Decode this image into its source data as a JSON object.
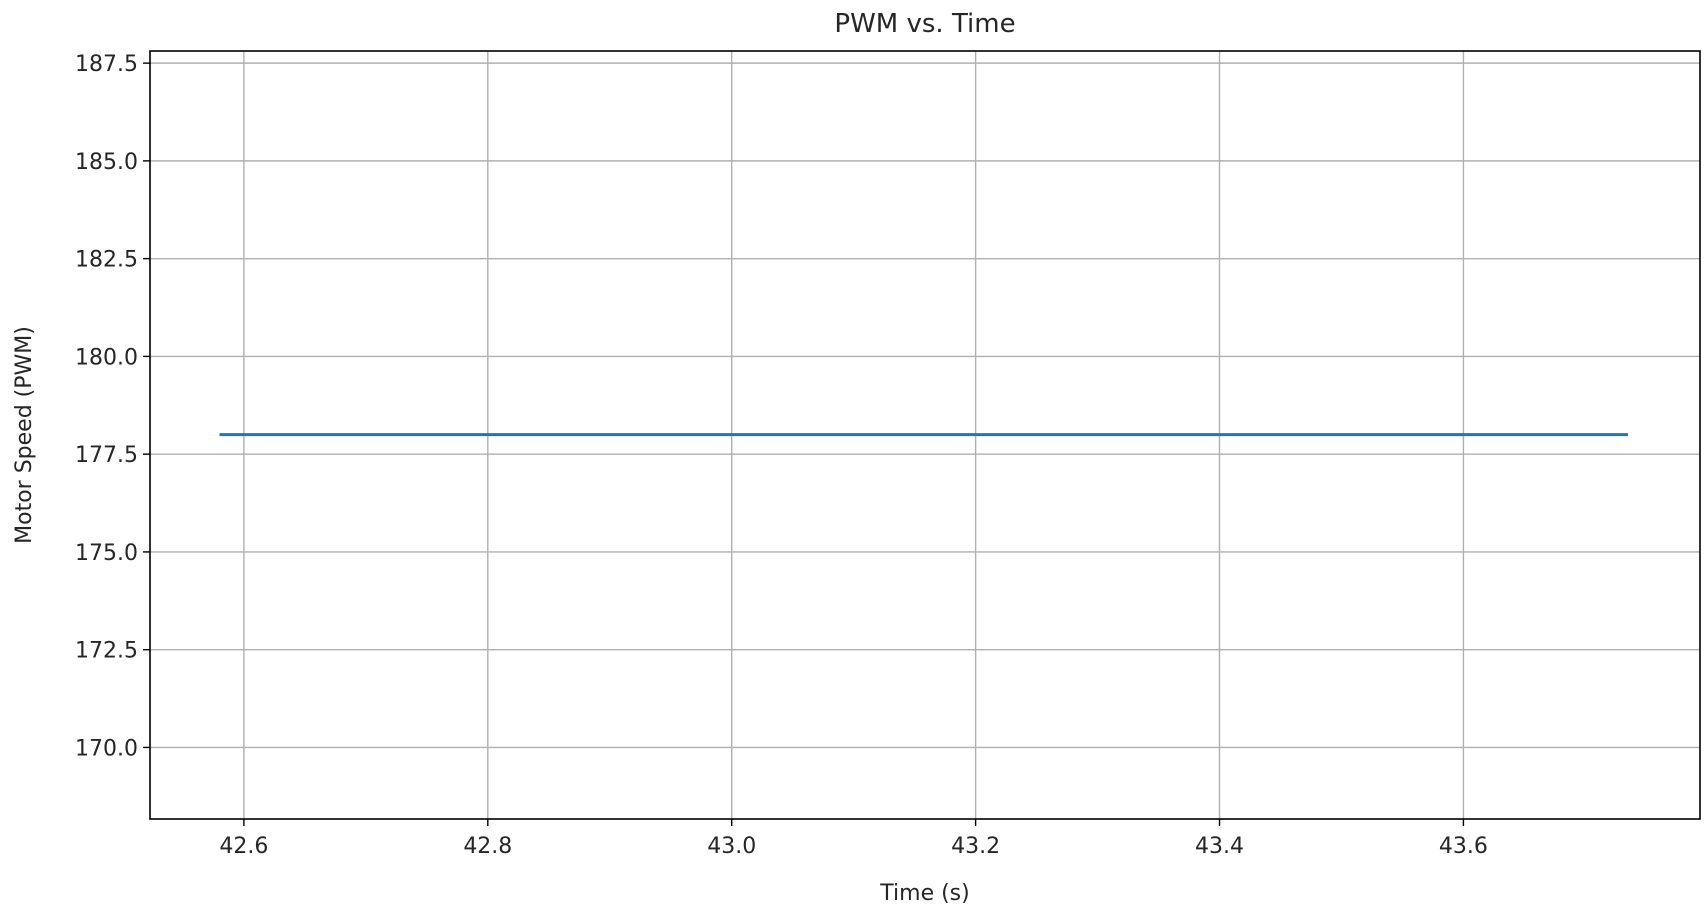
{
  "chart_data": {
    "type": "line",
    "title": "PWM vs. Time",
    "xlabel": "Time (s)",
    "ylabel": "Motor Speed (PWM)",
    "xlim": [
      42.523,
      43.794
    ],
    "ylim": [
      168.17,
      187.81
    ],
    "xticks": [
      42.6,
      42.8,
      43.0,
      43.2,
      43.4,
      43.6
    ],
    "xtick_labels": [
      "42.6",
      "42.8",
      "43.0",
      "43.2",
      "43.4",
      "43.6"
    ],
    "yticks": [
      170.0,
      172.5,
      175.0,
      177.5,
      180.0,
      182.5,
      185.0,
      187.5
    ],
    "ytick_labels": [
      "170.0",
      "172.5",
      "175.0",
      "177.5",
      "180.0",
      "182.5",
      "185.0",
      "187.5"
    ],
    "grid": true,
    "series": [
      {
        "color": "#1f77b4",
        "x": [
          42.58,
          43.735
        ],
        "y": [
          178.0,
          178.0
        ]
      }
    ]
  }
}
